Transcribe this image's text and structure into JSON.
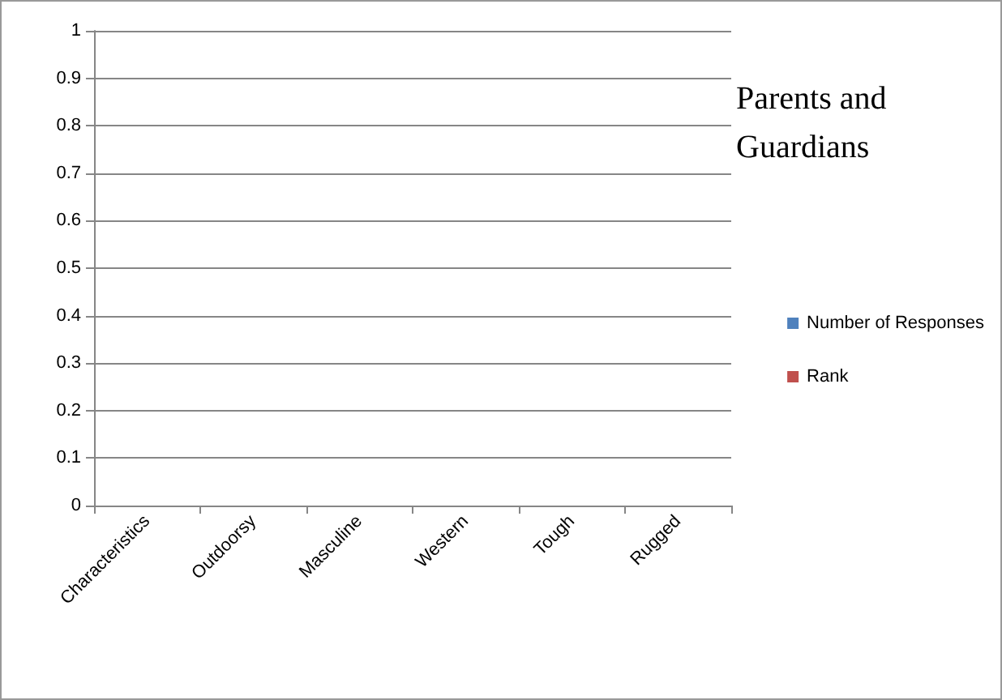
{
  "chart_data": {
    "type": "bar",
    "title": "Parents and Guardians",
    "categories": [
      "Characteristics",
      "Outdoorsy",
      "Masculine",
      "Western",
      "Tough",
      "Rugged"
    ],
    "series": [
      {
        "name": "Number of Responses",
        "color": "#4f81bd",
        "values": [
          0,
          0,
          0,
          0,
          0,
          0
        ]
      },
      {
        "name": "Rank",
        "color": "#c0504d",
        "values": [
          0,
          0,
          0,
          0,
          0,
          0
        ]
      }
    ],
    "ylim": [
      0,
      1
    ],
    "yticks": [
      0,
      0.1,
      0.2,
      0.3,
      0.4,
      0.5,
      0.6,
      0.7,
      0.8,
      0.9,
      1
    ],
    "grid": "y",
    "legend": "right"
  }
}
